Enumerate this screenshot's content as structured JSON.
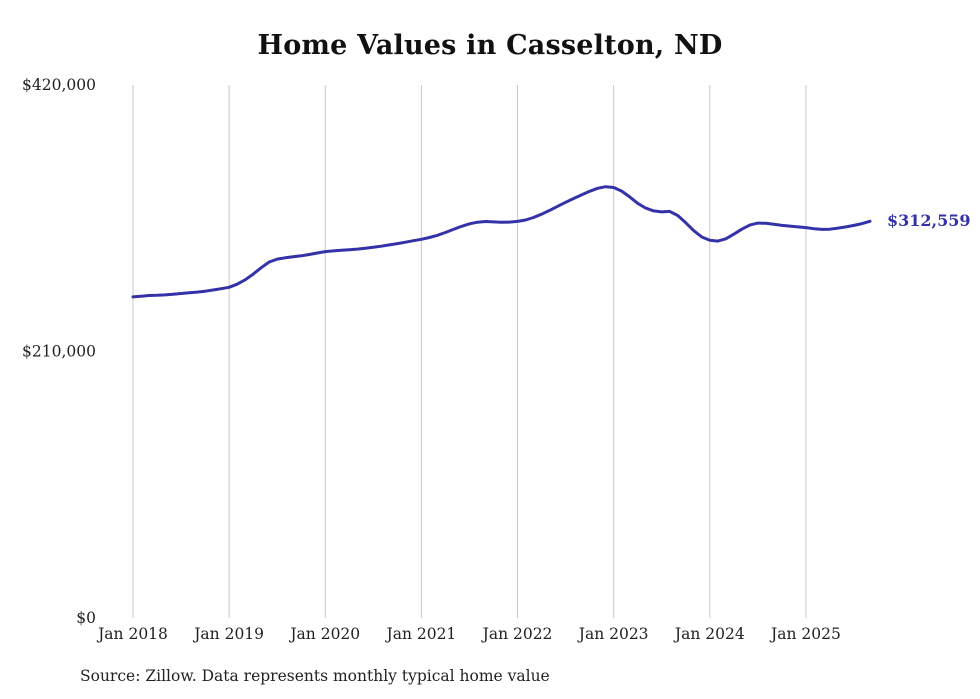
{
  "chart_data": {
    "type": "line",
    "title": "Home Values in Casselton, ND",
    "source": "Source: Zillow. Data represents monthly typical home value",
    "end_label": "$312,559",
    "latest_value": 312559,
    "line_color": "#3432a8",
    "grid_color": "#c9c9c9",
    "grid": "vertical-only",
    "legend": "none",
    "ylim": [
      0,
      420000
    ],
    "y_ticks": [
      {
        "value": 0,
        "label": "$0"
      },
      {
        "value": 210000,
        "label": "$210,000"
      },
      {
        "value": 420000,
        "label": "$420,000"
      }
    ],
    "x_ticks": [
      "Jan 2018",
      "Jan 2019",
      "Jan 2020",
      "Jan 2021",
      "Jan 2022",
      "Jan 2023",
      "Jan 2024",
      "Jan 2025"
    ],
    "series": [
      {
        "name": "Monthly typical home value",
        "x": [
          "2018-01",
          "2018-02",
          "2018-03",
          "2018-04",
          "2018-05",
          "2018-06",
          "2018-07",
          "2018-08",
          "2018-09",
          "2018-10",
          "2018-11",
          "2018-12",
          "2019-01",
          "2019-02",
          "2019-03",
          "2019-04",
          "2019-05",
          "2019-06",
          "2019-07",
          "2019-08",
          "2019-09",
          "2019-10",
          "2019-11",
          "2019-12",
          "2020-01",
          "2020-02",
          "2020-03",
          "2020-04",
          "2020-05",
          "2020-06",
          "2020-07",
          "2020-08",
          "2020-09",
          "2020-10",
          "2020-11",
          "2020-12",
          "2021-01",
          "2021-02",
          "2021-03",
          "2021-04",
          "2021-05",
          "2021-06",
          "2021-07",
          "2021-08",
          "2021-09",
          "2021-10",
          "2021-11",
          "2021-12",
          "2022-01",
          "2022-02",
          "2022-03",
          "2022-04",
          "2022-05",
          "2022-06",
          "2022-07",
          "2022-08",
          "2022-09",
          "2022-10",
          "2022-11",
          "2022-12",
          "2023-01",
          "2023-02",
          "2023-03",
          "2023-04",
          "2023-05",
          "2023-06",
          "2023-07",
          "2023-08",
          "2023-09",
          "2023-10",
          "2023-11",
          "2023-12",
          "2024-01",
          "2024-02",
          "2024-03",
          "2024-04",
          "2024-05",
          "2024-06",
          "2024-07",
          "2024-08",
          "2024-09",
          "2024-10",
          "2024-11",
          "2024-12",
          "2025-01",
          "2025-02",
          "2025-03",
          "2025-04",
          "2025-05",
          "2025-06",
          "2025-07",
          "2025-08",
          "2025-09"
        ],
        "values": [
          253000,
          253600,
          254100,
          254300,
          254600,
          255100,
          255700,
          256300,
          256800,
          257500,
          258500,
          259500,
          260600,
          263000,
          266500,
          271000,
          276000,
          280500,
          282800,
          283800,
          284600,
          285400,
          286400,
          287600,
          288700,
          289300,
          289800,
          290200,
          290700,
          291300,
          292100,
          293000,
          294000,
          295000,
          296100,
          297300,
          298400,
          299800,
          301600,
          303800,
          306200,
          308600,
          310600,
          311900,
          312400,
          312100,
          311800,
          312000,
          312500,
          313600,
          315600,
          318200,
          321200,
          324400,
          327600,
          330600,
          333400,
          336200,
          338600,
          339900,
          339200,
          336400,
          331800,
          326800,
          323000,
          320800,
          320000,
          320400,
          317200,
          311400,
          305200,
          300200,
          297600,
          297000,
          298800,
          302400,
          306400,
          309600,
          311200,
          311000,
          310200,
          309400,
          308800,
          308200,
          307600,
          306800,
          306200,
          306400,
          307200,
          308200,
          309400,
          310800,
          312559
        ]
      }
    ]
  }
}
